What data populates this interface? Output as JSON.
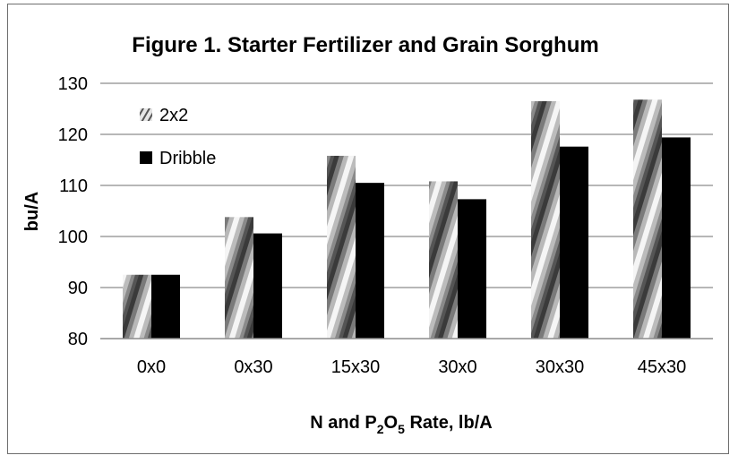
{
  "chart_data": {
    "type": "bar",
    "title": "Figure 1. Starter Fertilizer and Grain Sorghum",
    "xlabel": {
      "prefix": "N and P",
      "sub1": "2",
      "mid": "O",
      "sub2": "5",
      "suffix": " Rate, lb/A"
    },
    "ylabel": "bu/A",
    "categories": [
      "0x0",
      "0x30",
      "15x30",
      "30x0",
      "30x30",
      "45x30"
    ],
    "series": [
      {
        "name": "2x2",
        "values": [
          92.5,
          103.8,
          115.8,
          110.8,
          126.5,
          126.8
        ],
        "fill": "hatched-gray"
      },
      {
        "name": "Dribble",
        "values": [
          92.5,
          100.6,
          110.5,
          107.3,
          117.6,
          119.4
        ],
        "color": "#000000"
      }
    ],
    "ylim": [
      80,
      130
    ],
    "yticks": [
      "80",
      "90",
      "100",
      "110",
      "120",
      "130"
    ],
    "grid": true,
    "legend_position": "top-left"
  }
}
